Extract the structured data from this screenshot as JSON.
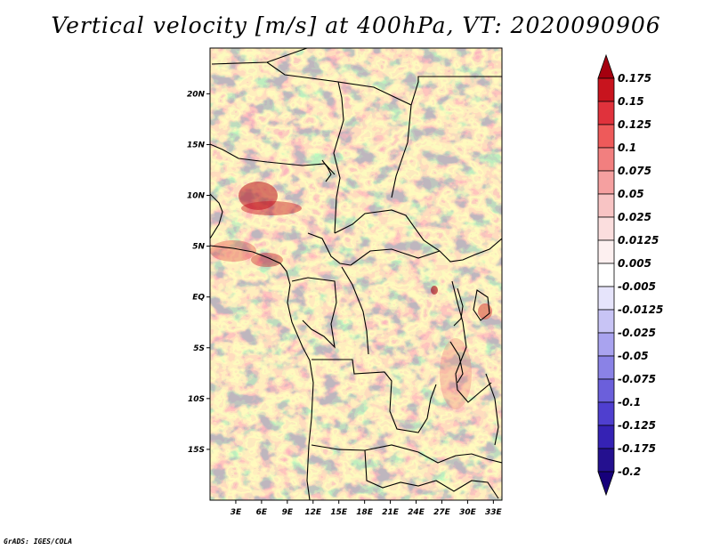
{
  "header": {
    "title": "Vertical velocity [m/s] at 400hPa, VT: 2020090906"
  },
  "footer": {
    "credit": "GrADS: IGES/COLA"
  },
  "map": {
    "lon_range": [
      0,
      34
    ],
    "lat_range": [
      -20,
      24.5
    ],
    "lon_ticks": [
      3,
      6,
      9,
      12,
      15,
      18,
      21,
      24,
      27,
      30,
      33
    ],
    "lon_tick_labels": [
      "3E",
      "6E",
      "9E",
      "12E",
      "15E",
      "18E",
      "21E",
      "24E",
      "27E",
      "30E",
      "33E"
    ],
    "lat_ticks": [
      20,
      15,
      10,
      5,
      0,
      -5,
      -10,
      -15
    ],
    "lat_tick_labels": [
      "20N",
      "15N",
      "10N",
      "5N",
      "EQ",
      "5S",
      "10S",
      "15S"
    ]
  },
  "colorbar": {
    "levels": [
      "0.175",
      "0.15",
      "0.125",
      "0.1",
      "0.075",
      "0.05",
      "0.025",
      "0.0125",
      "0.005",
      "-0.005",
      "-0.0125",
      "-0.025",
      "-0.05",
      "-0.075",
      "-0.1",
      "-0.125",
      "-0.175",
      "-0.2"
    ],
    "colors": [
      "#a5000f",
      "#c8141e",
      "#e0323c",
      "#ee5a5a",
      "#f27f7f",
      "#f5a0a0",
      "#f8c4c4",
      "#fbdede",
      "#fdf0f0",
      "#ffffff",
      "#e6e4fb",
      "#c8c4f5",
      "#a9a3ef",
      "#8a82e6",
      "#6b5fdb",
      "#4f3fcf",
      "#3522b4",
      "#24108f",
      "#16007a"
    ]
  }
}
